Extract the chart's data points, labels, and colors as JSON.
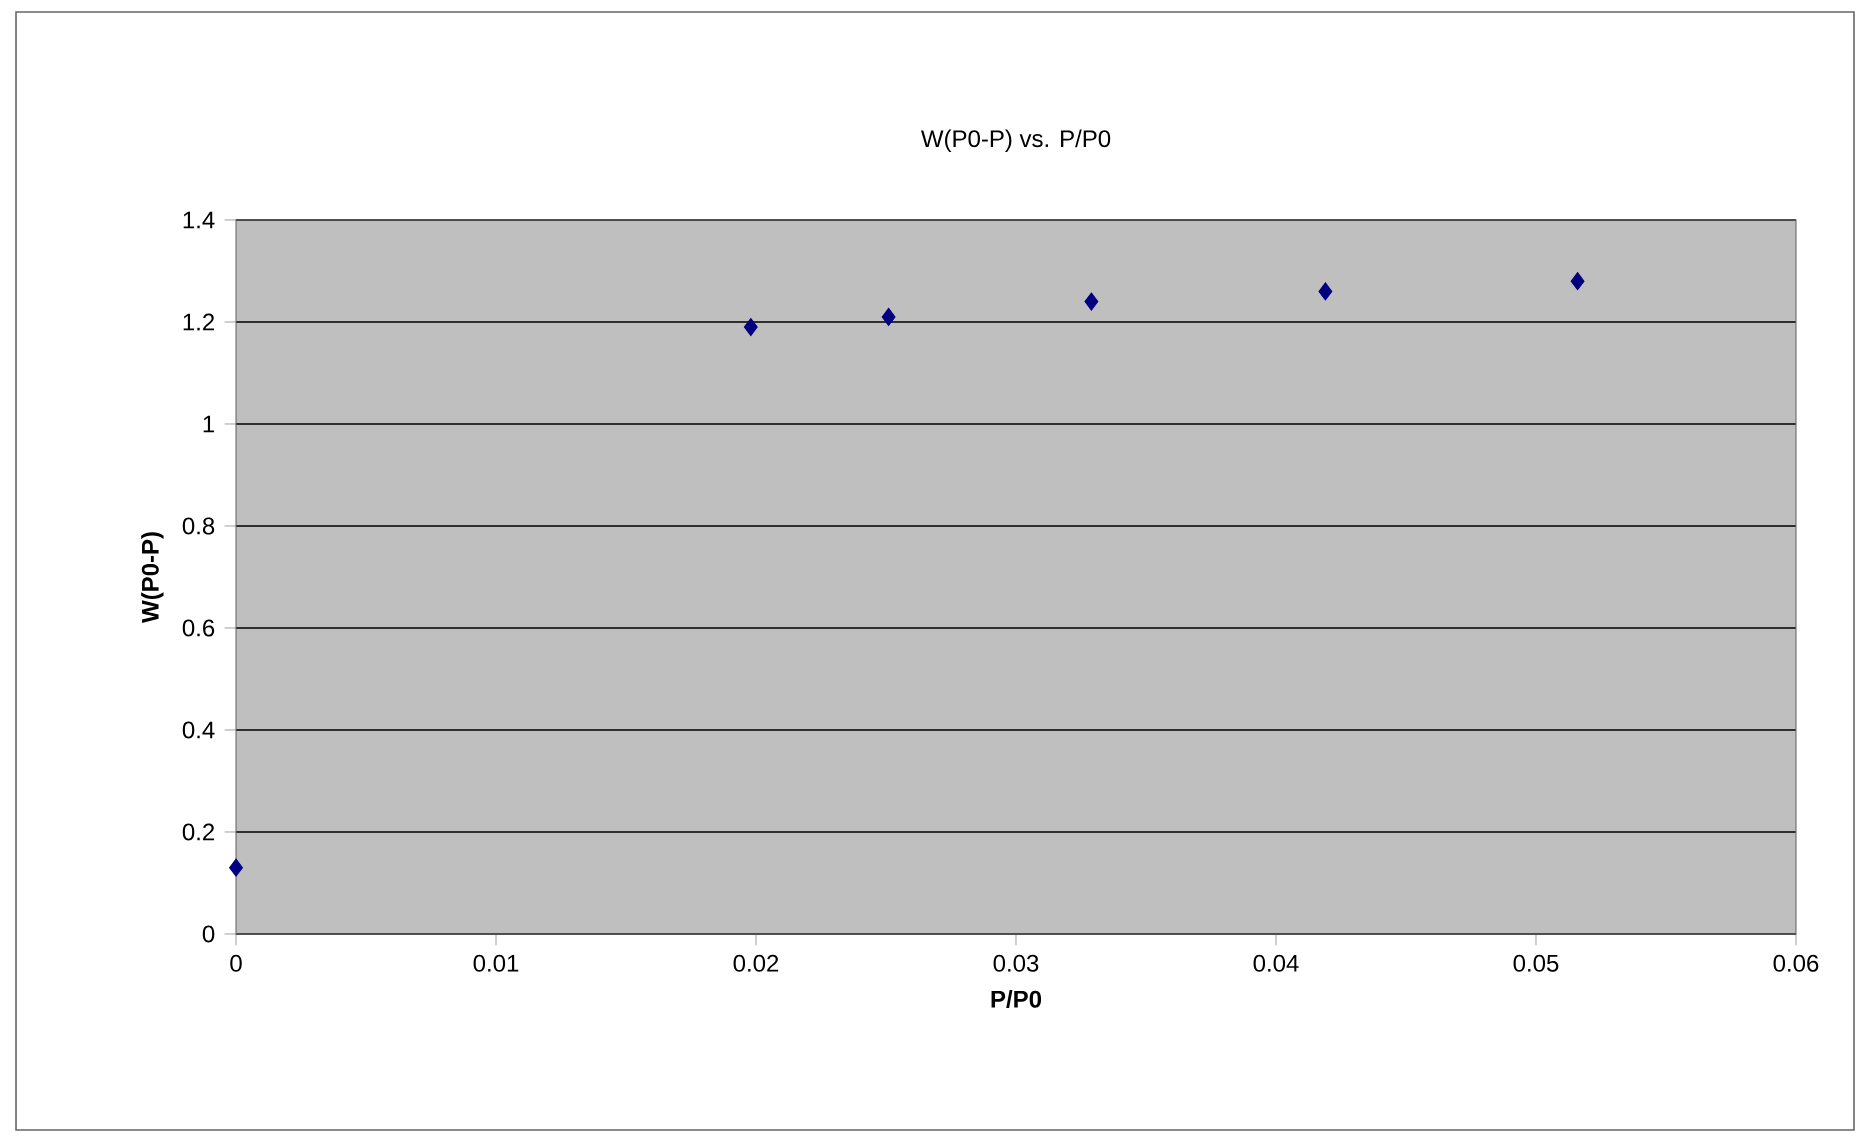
{
  "chart_data": {
    "type": "scatter",
    "title": "W(P0-P) vs. P/P0",
    "xlabel": "P/P0",
    "ylabel": "W(P0-P)",
    "x": [
      0,
      0.0198,
      0.0251,
      0.0329,
      0.0419,
      0.0516
    ],
    "values": [
      0.13,
      1.19,
      1.21,
      1.24,
      1.26,
      1.28
    ],
    "color": "#000080",
    "marker": "diamond",
    "grid": "y",
    "xlim": [
      0,
      0.06
    ],
    "xticks": [
      0,
      0.01,
      0.02,
      0.03,
      0.04,
      0.05,
      0.06
    ],
    "ylim": [
      0,
      1.4
    ],
    "yticks": [
      0,
      0.2,
      0.4,
      0.6,
      0.8,
      1,
      1.2,
      1.4
    ]
  }
}
